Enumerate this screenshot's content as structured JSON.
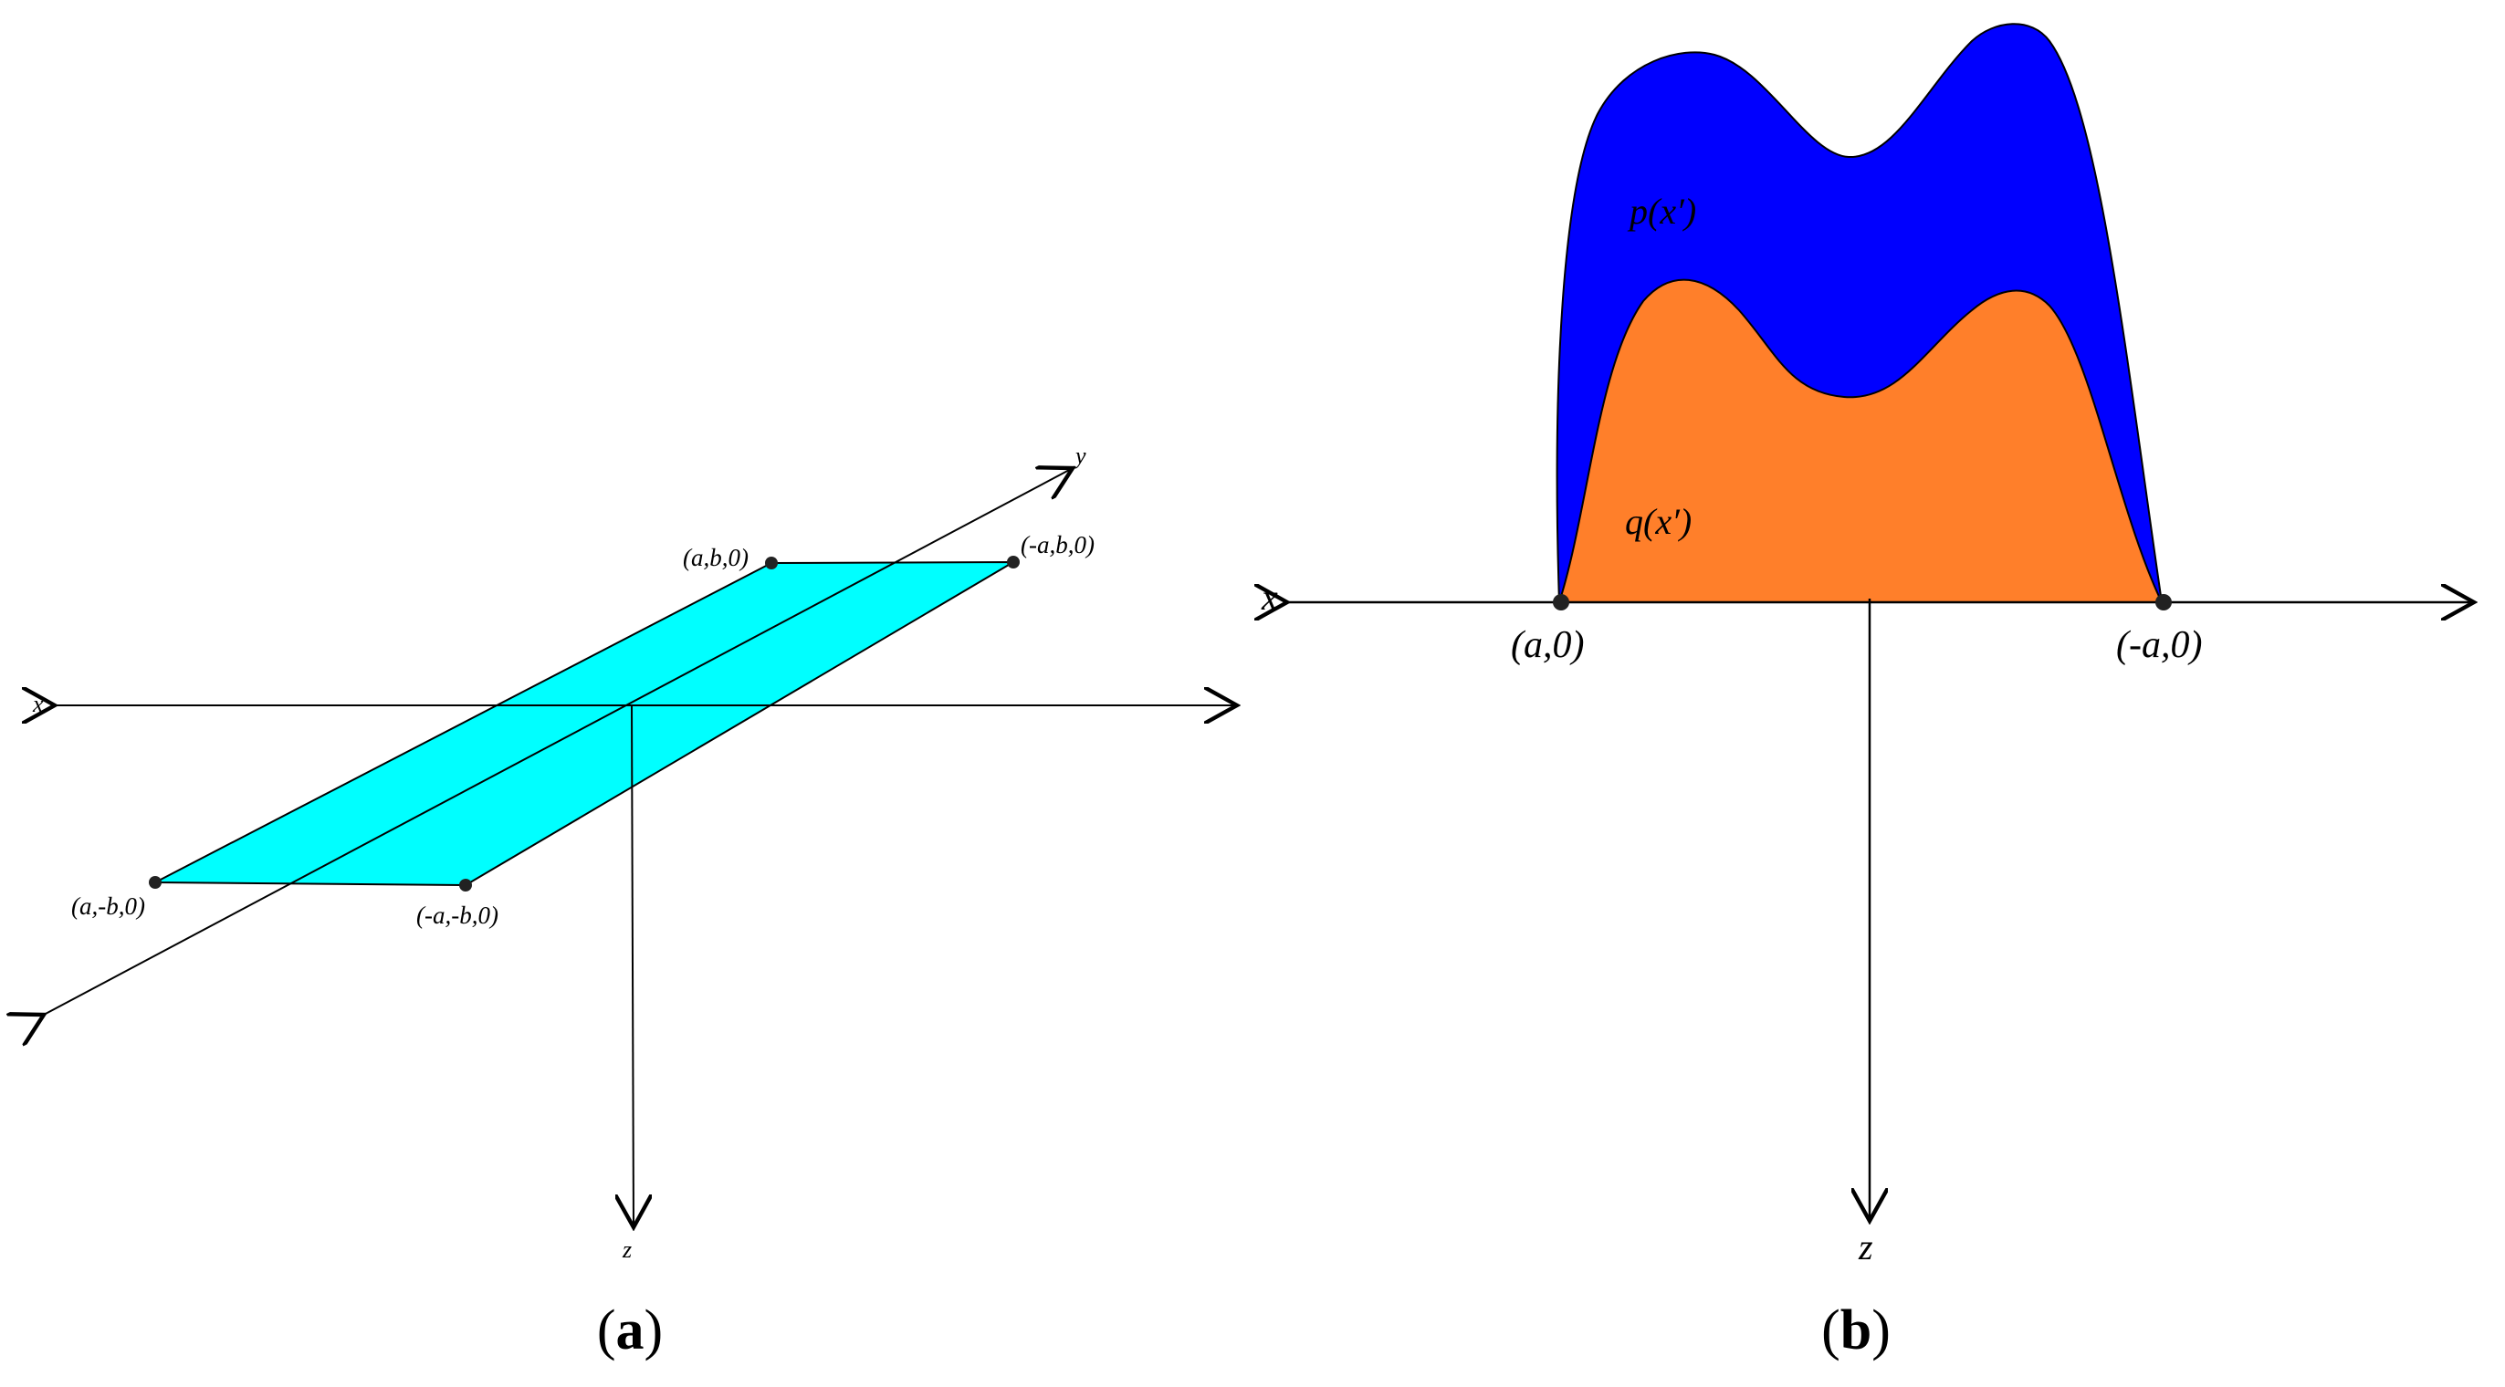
{
  "panel_a": {
    "caption_letter": "a",
    "axis_labels": {
      "x": "x",
      "y": "y",
      "z": "z"
    },
    "corner_labels": {
      "top_left": "(a,b,0)",
      "top_right": "(-a,b,0)",
      "bottom_left": "(a,-b,0)",
      "bottom_right": "(-a,-b,0)"
    },
    "plate_color": "#00FFFF"
  },
  "panel_b": {
    "caption_letter": "b",
    "axis_labels": {
      "x": "x",
      "z": "z"
    },
    "point_labels": {
      "left": "(a,0)",
      "right": "(-a,0)"
    },
    "region_labels": {
      "outer": "p(x′)",
      "inner": "q(x′)"
    },
    "outer_color": "#0000FF",
    "inner_color": "#FF7F2A"
  }
}
